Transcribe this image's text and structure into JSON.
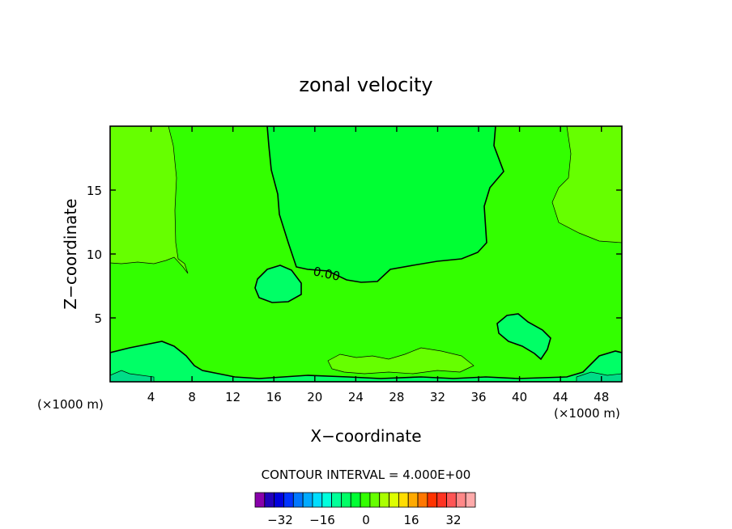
{
  "chart_data": {
    "type": "heatmap",
    "title": "zonal velocity",
    "xlabel": "X−coordinate",
    "ylabel": "Z−coordinate",
    "x_units_left": "(×1000 m)",
    "x_units_right": "(×1000 m)",
    "xlim": [
      0,
      50
    ],
    "ylim": [
      0,
      20
    ],
    "x_ticks": [
      4,
      8,
      12,
      16,
      20,
      24,
      28,
      32,
      36,
      40,
      44,
      48
    ],
    "y_ticks": [
      5,
      10,
      15
    ],
    "contour_label": "0.00",
    "contour_interval_text": "CONTOUR INTERVAL = 4.000E+00",
    "colorbar": {
      "colors": [
        "#8800aa",
        "#2200bb",
        "#0000dd",
        "#0033ff",
        "#0077ff",
        "#00aaff",
        "#00ddff",
        "#00ffdd",
        "#00ff99",
        "#00ff66",
        "#00ff33",
        "#33ff00",
        "#66ff00",
        "#aaff00",
        "#ddff00",
        "#ffdd00",
        "#ffaa00",
        "#ff7700",
        "#ff3300",
        "#ff3322",
        "#ff5555",
        "#ff8888",
        "#ffaaaa"
      ],
      "tick_labels": [
        "−32",
        "−16",
        "0",
        "16",
        "32"
      ]
    },
    "regions": {
      "background": "#33ff00",
      "positive_light": "#66ff00",
      "negative": "#00ff33",
      "negative_deep": "#00ff66",
      "near_surface": "#00dd88"
    }
  }
}
